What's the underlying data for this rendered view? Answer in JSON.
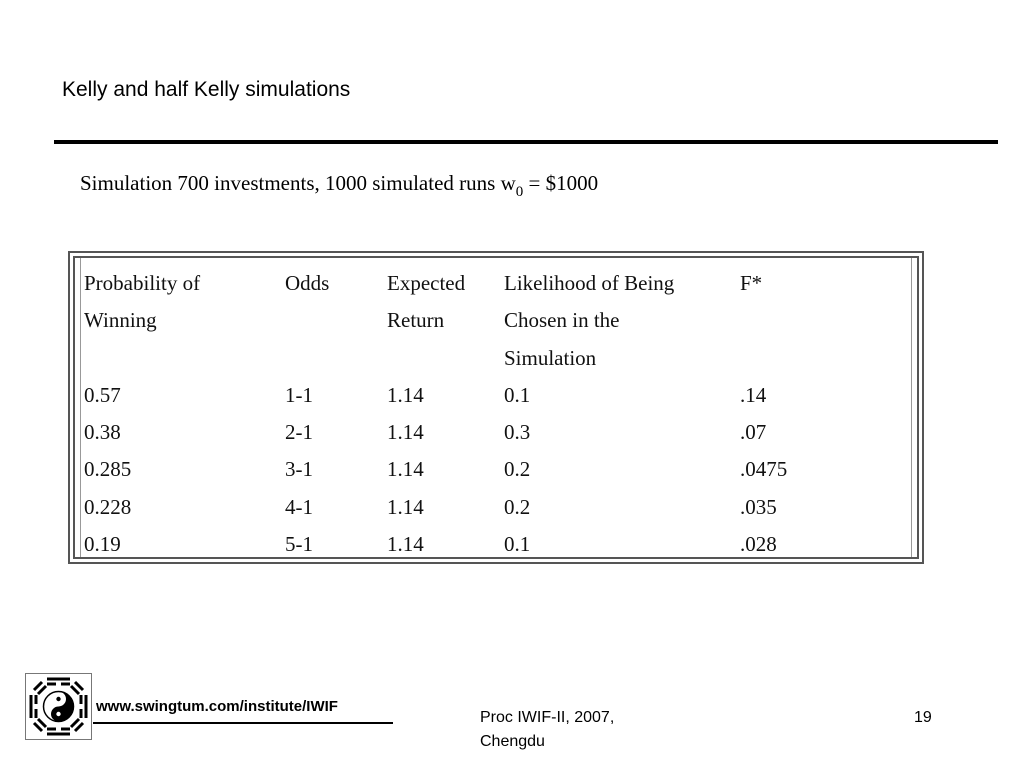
{
  "slide": {
    "title": "Kelly and half Kelly simulations",
    "caption_prefix": "Simulation 700 investments, 1000 simulated runs w",
    "caption_subscript": "0",
    "caption_suffix": " =  $1000"
  },
  "table": {
    "headers": [
      [
        "Probability of",
        "Winning"
      ],
      [
        "Odds"
      ],
      [
        "Expected",
        "Return"
      ],
      [
        "Likelihood of Being",
        "Chosen in the",
        "Simulation"
      ],
      [
        "F*"
      ]
    ],
    "rows": [
      [
        "0.57",
        "1-1",
        "1.14",
        "0.1",
        ".14"
      ],
      [
        "0.38",
        "2-1",
        "1.14",
        "0.3",
        ".07"
      ],
      [
        "0.285",
        "3-1",
        "1.14",
        "0.2",
        ".0475"
      ],
      [
        "0.228",
        "4-1",
        "1.14",
        "0.2",
        ".035"
      ],
      [
        "0.19",
        "5-1",
        "1.14",
        "0.1",
        ".028"
      ]
    ]
  },
  "footer": {
    "logo_icon": "yin-yang-bagua-icon",
    "url": "www.swingtum.com/institute/IWIF",
    "proceedings_line1": "Proc IWIF-II, 2007,",
    "proceedings_line2": "Chengdu",
    "page_number": "19"
  }
}
